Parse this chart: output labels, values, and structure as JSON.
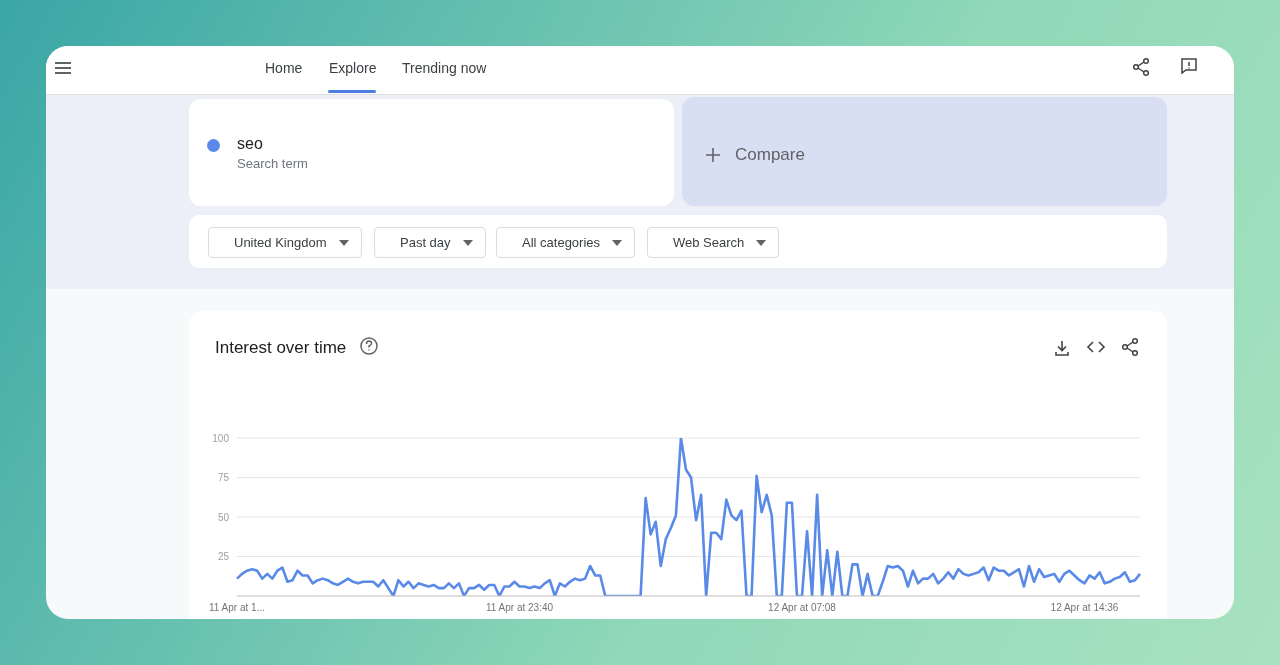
{
  "chart_data": {
    "type": "line",
    "title": "Interest over time",
    "annotations": [
      "Home",
      "Explore",
      "Trending now",
      "Search term",
      "Compare",
      "United Kingdom",
      "Past day",
      "All categories",
      "Web Search"
    ],
    "categories": [
      "11 Apr at 1...",
      null,
      null,
      null,
      null,
      null,
      null,
      null,
      null,
      null,
      null,
      null,
      null,
      null,
      null,
      null,
      null,
      null,
      null,
      null,
      null,
      null,
      null,
      null,
      null,
      null,
      null,
      null,
      null,
      null,
      null,
      null,
      null,
      null,
      null,
      null,
      null,
      null,
      null,
      null,
      null,
      null,
      null,
      null,
      null,
      null,
      null,
      null,
      null,
      null,
      null,
      null,
      null,
      null,
      null,
      null,
      "11 Apr at 23:40",
      null,
      null,
      null,
      null,
      null,
      null,
      null,
      null,
      null,
      null,
      null,
      null,
      null,
      null,
      null,
      null,
      null,
      null,
      null,
      null,
      null,
      null,
      null,
      null,
      null,
      null,
      null,
      null,
      null,
      null,
      null,
      null,
      null,
      null,
      null,
      null,
      null,
      null,
      null,
      null,
      null,
      null,
      null,
      null,
      null,
      null,
      null,
      null,
      null,
      null,
      null,
      null,
      null,
      null,
      null,
      "12 Apr at 07:08",
      null,
      null,
      null,
      null,
      null,
      null,
      null,
      null,
      null,
      null,
      null,
      null,
      null,
      null,
      null,
      null,
      null,
      null,
      null,
      null,
      null,
      null,
      null,
      null,
      null,
      null,
      null,
      null,
      null,
      null,
      null,
      null,
      null,
      null,
      null,
      null,
      null,
      null,
      null,
      null,
      null,
      null,
      null,
      null,
      null,
      null,
      null,
      null,
      null,
      null,
      null,
      null,
      null,
      null,
      null,
      "12 Apr at 14:36",
      null,
      null,
      null,
      null,
      null,
      null,
      null,
      null,
      null,
      null,
      null
    ],
    "series": [
      {
        "name": "seo",
        "color": "#5a8ae8",
        "values": [
          11,
          14,
          16,
          17,
          16,
          11,
          14,
          11,
          16,
          18,
          9,
          10,
          16,
          13,
          13,
          8,
          10,
          11,
          10,
          8,
          7,
          9,
          11,
          9,
          8,
          9,
          9,
          9,
          6,
          10,
          5,
          0,
          10,
          6,
          9,
          5,
          8,
          7,
          6,
          7,
          5,
          5,
          8,
          5,
          8,
          0,
          5,
          5,
          7,
          4,
          7,
          7,
          0,
          6,
          6,
          9,
          6,
          6,
          5,
          6,
          5,
          8,
          10,
          0,
          8,
          6,
          9,
          11,
          10,
          11,
          19,
          13,
          13,
          0,
          0,
          0,
          0,
          0,
          0,
          0,
          0,
          62,
          39,
          47,
          19,
          36,
          43,
          51,
          100,
          80,
          75,
          48,
          64,
          0,
          40,
          40,
          36,
          61,
          51,
          48,
          54,
          0,
          0,
          76,
          53,
          64,
          51,
          0,
          0,
          59,
          59,
          0,
          0,
          41,
          0,
          64,
          0,
          29,
          0,
          28,
          0,
          0,
          20,
          20,
          0,
          14,
          0,
          0,
          9,
          19,
          18,
          19,
          16,
          6,
          16,
          8,
          11,
          11,
          14,
          8,
          11,
          15,
          11,
          17,
          14,
          13,
          14,
          15,
          18,
          10,
          18,
          16,
          16,
          13,
          15,
          17,
          6,
          19,
          9,
          17,
          12,
          13,
          14,
          9,
          14,
          16,
          13,
          10,
          8,
          13,
          11,
          15,
          8,
          9,
          11,
          12,
          15,
          9,
          10,
          14
        ]
      }
    ],
    "ylim": [
      0,
      100
    ],
    "yticks": [
      25,
      50,
      75,
      100
    ],
    "grid": "y",
    "legend": "top left"
  }
}
